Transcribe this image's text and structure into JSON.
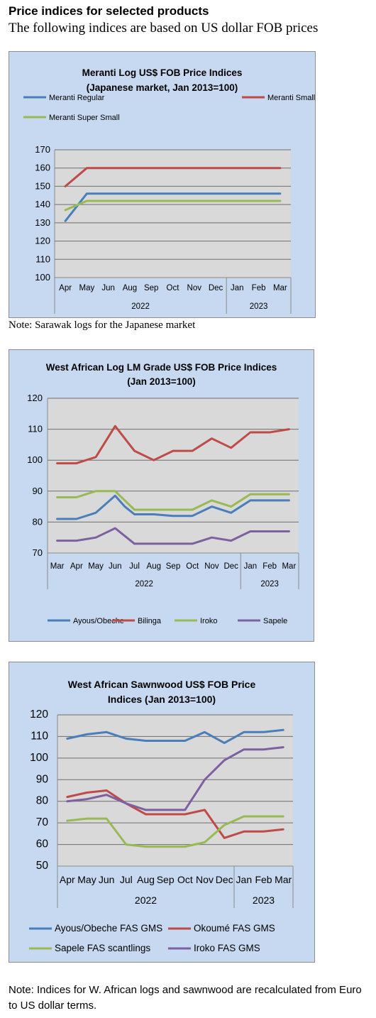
{
  "page": {
    "heading": "Price indices for selected products",
    "subheading": "The following indices are based on US dollar FOB prices",
    "note1": "Note: Sarawak logs for the Japanese market",
    "note2": "Note: Indices for W. African logs and sawnwood are recalculated from Euro to US dollar terms."
  },
  "chart_data": [
    {
      "type": "line",
      "title": "Meranti Log US$ FOB Price Indices",
      "subtitle": "(Japanese market, Jan 2013=100)",
      "categories": [
        "Apr",
        "May",
        "Jun",
        "Aug",
        "Sep",
        "Oct",
        "Nov",
        "Dec",
        "Jan",
        "Feb",
        "Mar"
      ],
      "year_groups": [
        {
          "label": "2022",
          "span": 8
        },
        {
          "label": "2023",
          "span": 3
        }
      ],
      "ylim": [
        100,
        170
      ],
      "ytick_step": 10,
      "grid": true,
      "legend_position": "bottom",
      "series": [
        {
          "name": "Meranti Regular",
          "color": "#4a7ebb",
          "x": [
            0,
            1,
            2,
            3,
            4,
            5,
            6,
            7,
            8,
            9,
            10
          ],
          "values": [
            131,
            146,
            146,
            146,
            146,
            146,
            146,
            146,
            146,
            146,
            146
          ]
        },
        {
          "name": "Meranti Small",
          "color": "#be4b48",
          "x": [
            0,
            1,
            2,
            3,
            4,
            5,
            6,
            7,
            8,
            9,
            10
          ],
          "values": [
            150,
            160,
            160,
            160,
            160,
            160,
            160,
            160,
            160,
            160,
            160
          ]
        },
        {
          "name": "Meranti Super Small",
          "color": "#98b954",
          "x": [
            0,
            1,
            2,
            3,
            4,
            5,
            6,
            7,
            8,
            9,
            10
          ],
          "values": [
            137,
            142,
            142,
            142,
            142,
            142,
            142,
            142,
            142,
            142,
            142
          ]
        }
      ]
    },
    {
      "type": "line",
      "title": "West African Log LM Grade US$ FOB Price Indices",
      "subtitle": "(Jan 2013=100)",
      "categories": [
        "Mar",
        "Apr",
        "May",
        "Jun",
        "Jul",
        "Aug",
        "Sep",
        "Oct",
        "Nov",
        "Dec",
        "Jan",
        "Feb",
        "Mar"
      ],
      "year_groups": [
        {
          "label": "2022",
          "span": 10
        },
        {
          "label": "2023",
          "span": 3
        }
      ],
      "ylim": [
        70,
        120
      ],
      "ytick_step": 10,
      "grid": true,
      "legend_position": "bottom",
      "series": [
        {
          "name": "Ayous/Obeche",
          "color": "#4a7ebb",
          "x": [
            0,
            1,
            2,
            3,
            3.5,
            4,
            5,
            6,
            7,
            8,
            9,
            10,
            11,
            12
          ],
          "values": [
            81,
            81,
            83,
            88.5,
            85,
            82.5,
            82.5,
            82,
            82,
            85,
            83,
            87,
            87,
            87
          ]
        },
        {
          "name": "Bilinga",
          "color": "#be4b48",
          "x": [
            0,
            1,
            2,
            3,
            4,
            5,
            6,
            7,
            8,
            9,
            10,
            11,
            12
          ],
          "values": [
            99,
            99,
            101,
            111,
            103,
            100,
            103,
            103,
            107,
            104,
            109,
            109,
            110
          ]
        },
        {
          "name": "Iroko",
          "color": "#98b954",
          "x": [
            0,
            1,
            2,
            3,
            4,
            5,
            6,
            7,
            8,
            9,
            10,
            11,
            12
          ],
          "values": [
            88,
            88,
            90,
            90,
            84,
            84,
            84,
            84,
            87,
            85,
            89,
            89,
            89
          ]
        },
        {
          "name": "Sapele",
          "color": "#7d60a0",
          "x": [
            0,
            1,
            2,
            3,
            4,
            5,
            6,
            7,
            8,
            9,
            10,
            11,
            12
          ],
          "values": [
            74,
            74,
            75,
            78,
            73,
            73,
            73,
            73,
            75,
            74,
            77,
            77,
            77
          ]
        }
      ]
    },
    {
      "type": "line",
      "title": "West African Sawnwood US$ FOB Price",
      "subtitle": "Indices (Jan 2013=100)",
      "categories": [
        "Apr",
        "May",
        "Jun",
        "Jul",
        "Aug",
        "Sep",
        "Oct",
        "Nov",
        "Dec",
        "Jan",
        "Feb",
        "Mar"
      ],
      "year_groups": [
        {
          "label": "2022",
          "span": 9
        },
        {
          "label": "2023",
          "span": 3
        }
      ],
      "ylim": [
        50,
        120
      ],
      "ytick_step": 10,
      "grid": true,
      "legend_position": "bottom",
      "series": [
        {
          "name": "Ayous/Obeche  FAS GMS",
          "color": "#4a7ebb",
          "x": [
            0,
            1,
            2,
            3,
            4,
            5,
            6,
            7,
            8,
            9,
            10,
            11
          ],
          "values": [
            109,
            111,
            112,
            109,
            108,
            108,
            108,
            112,
            107,
            112,
            112,
            113
          ]
        },
        {
          "name": "Okoumé  FAS GMS",
          "color": "#be4b48",
          "x": [
            0,
            1,
            2,
            3,
            4,
            5,
            6,
            7,
            8,
            9,
            10,
            11
          ],
          "values": [
            82,
            84,
            85,
            79,
            74,
            74,
            74,
            76,
            63,
            66,
            66,
            67
          ]
        },
        {
          "name": "Sapele FAS scantlings",
          "color": "#98b954",
          "x": [
            0,
            1,
            2,
            3,
            4,
            5,
            6,
            7,
            8,
            9,
            10,
            11
          ],
          "values": [
            71,
            72,
            72,
            60,
            59,
            59,
            59,
            61,
            69,
            73,
            73,
            73
          ]
        },
        {
          "name": "Iroko FAS GMS",
          "color": "#7d60a0",
          "x": [
            0,
            1,
            2,
            3,
            4,
            5,
            6,
            7,
            8,
            9,
            10,
            11
          ],
          "values": [
            80,
            81,
            83,
            79,
            76,
            76,
            76,
            90,
            99,
            104,
            104,
            105
          ]
        }
      ]
    }
  ]
}
